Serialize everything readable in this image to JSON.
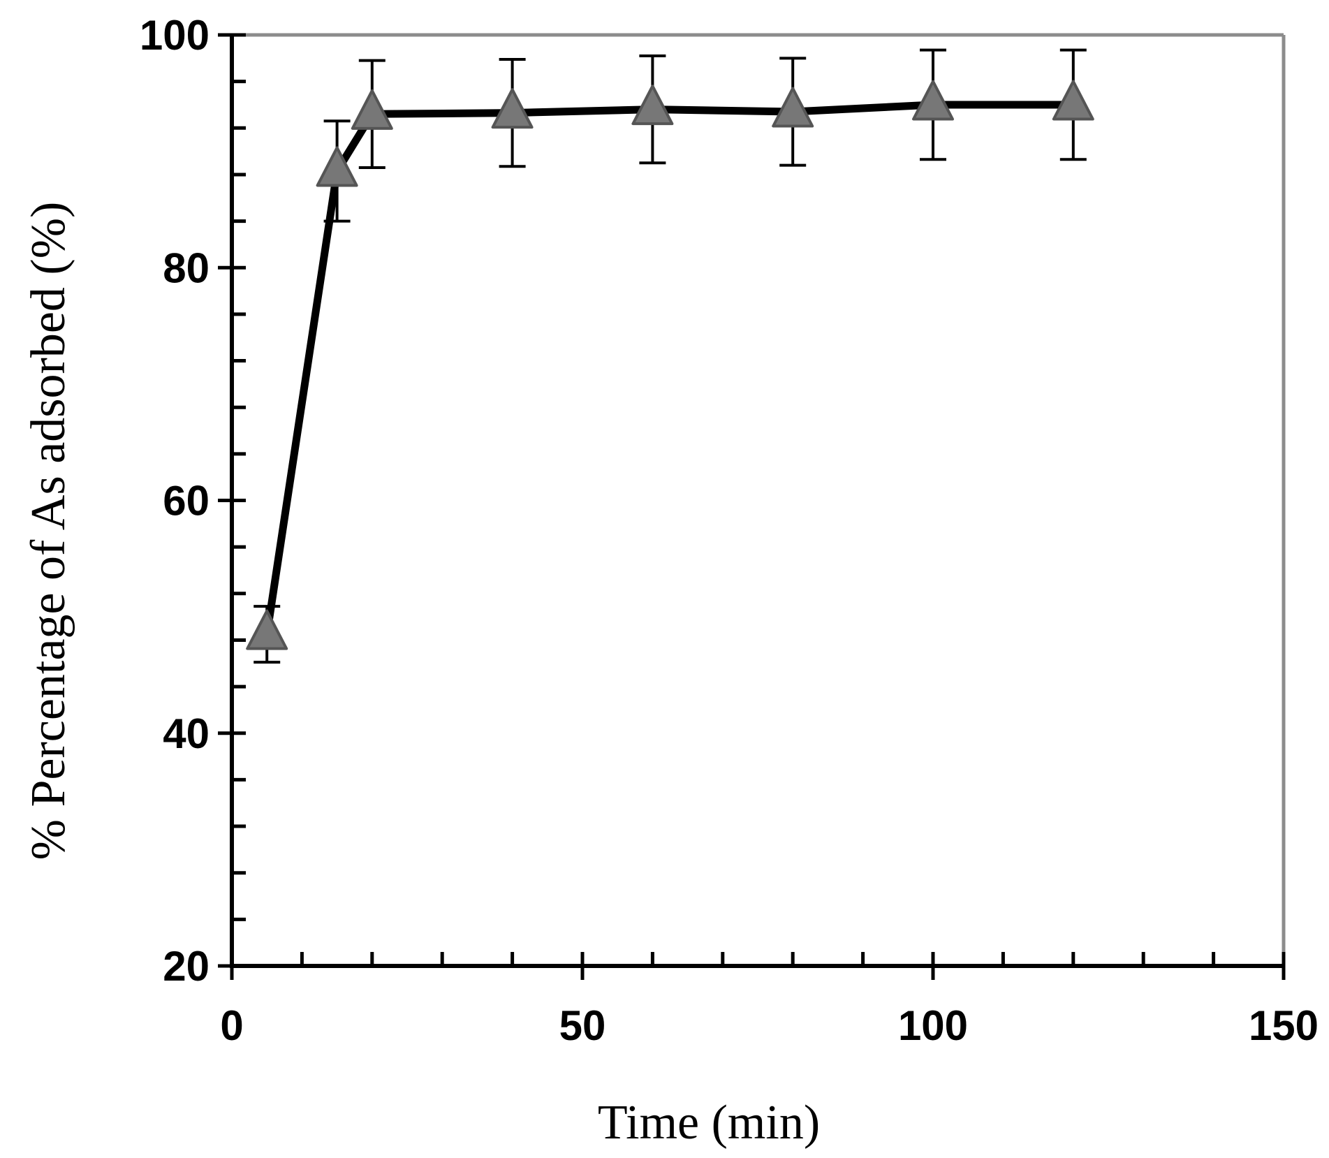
{
  "chart_data": {
    "type": "line",
    "title": "",
    "xlabel": "Time (min)",
    "ylabel": "% Percentage of As adsorbed (%)",
    "xlim": [
      0,
      150
    ],
    "ylim": [
      20,
      100
    ],
    "x_major_ticks": [
      0,
      50,
      100,
      150
    ],
    "x_tick_labels": [
      "0",
      "50",
      "100",
      "150"
    ],
    "x_minor_step": 10,
    "y_major_ticks": [
      20,
      40,
      60,
      80,
      100
    ],
    "y_tick_labels": [
      "20",
      "40",
      "60",
      "80",
      "100"
    ],
    "y_minor_step": 4,
    "grid": false,
    "series": [
      {
        "marker": "triangle",
        "line_color": "#000000",
        "marker_fill": "#777777",
        "marker_edge": "#555555",
        "x": [
          5,
          15,
          20,
          40,
          60,
          80,
          100,
          120
        ],
        "y": [
          48.5,
          88.3,
          93.2,
          93.3,
          93.6,
          93.4,
          94.0,
          94.0
        ],
        "error": [
          2.4,
          4.3,
          4.6,
          4.6,
          4.6,
          4.6,
          4.7,
          4.7
        ]
      }
    ]
  }
}
